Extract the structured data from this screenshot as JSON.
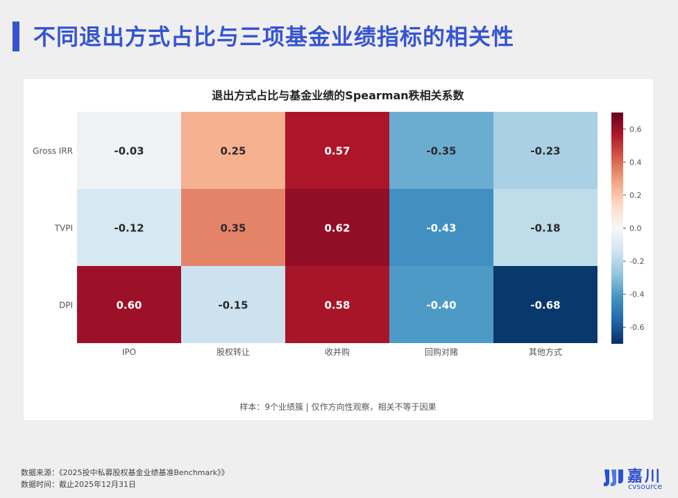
{
  "page": {
    "title": "不同退出方式占比与三项基金业绩指标的相关性"
  },
  "chart_data": {
    "type": "heatmap",
    "title": "退出方式占比与基金业绩的Spearman秩相关系数",
    "rows": [
      "Gross IRR",
      "TVPI",
      "DPI"
    ],
    "columns": [
      "IPO",
      "股权转让",
      "收并购",
      "回购对赌",
      "其他方式"
    ],
    "values": [
      [
        -0.03,
        0.25,
        0.57,
        -0.35,
        -0.23
      ],
      [
        -0.12,
        0.35,
        0.62,
        -0.43,
        -0.18
      ],
      [
        0.6,
        -0.15,
        0.58,
        -0.4,
        -0.68
      ]
    ],
    "value_labels": [
      [
        "-0.03",
        "0.25",
        "0.57",
        "-0.35",
        "-0.23"
      ],
      [
        "-0.12",
        "0.35",
        "0.62",
        "-0.43",
        "-0.18"
      ],
      [
        "0.60",
        "-0.15",
        "0.58",
        "-0.40",
        "-0.68"
      ]
    ],
    "colorbar": {
      "range": [
        -0.7,
        0.7
      ],
      "ticks": [
        0.6,
        0.4,
        0.2,
        0.0,
        -0.2,
        -0.4,
        -0.6
      ],
      "tick_labels": [
        "0.6",
        "0.4",
        "0.2",
        "0.0",
        "-0.2",
        "-0.4",
        "-0.6"
      ],
      "colormap": "RdBu_r"
    },
    "note": "样本：9个业绩簇 | 仅作方向性观察，相关不等于因果"
  },
  "footer": {
    "source": "数据来源：《2025投中私募股权基金业绩基准Benchmark》》",
    "date": "数据时间：截止2025年12月31日"
  },
  "logo": {
    "cn": "嘉川",
    "en": "cvsource"
  },
  "colors": {
    "accent": "#3554d1",
    "logo": "#2a4fd0"
  }
}
